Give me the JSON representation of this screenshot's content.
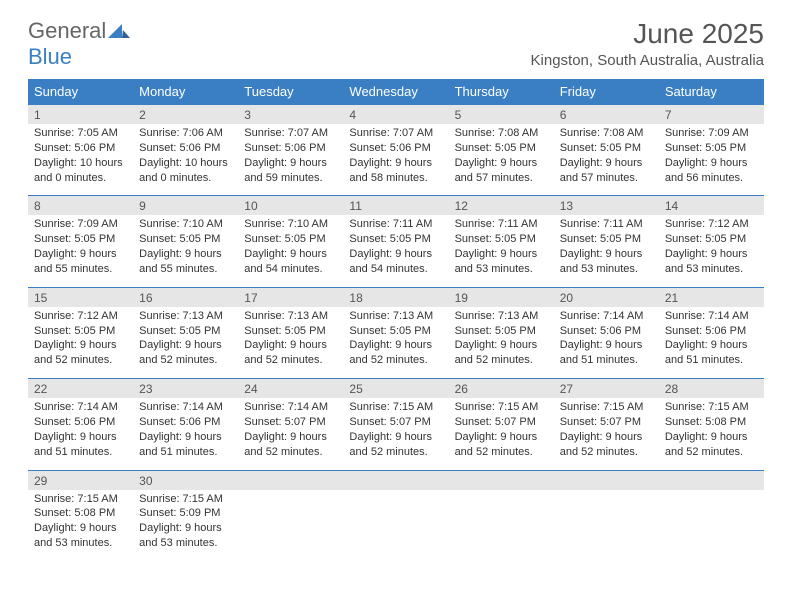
{
  "logo": {
    "part1": "General",
    "part2": "Blue"
  },
  "title": "June 2025",
  "location": "Kingston, South Australia, Australia",
  "colors": {
    "header_bg": "#3a7fc4",
    "header_text": "#ffffff",
    "daynum_bg": "#e6e6e6",
    "border": "#3a7fc4",
    "text": "#333333",
    "title_text": "#555555"
  },
  "day_names": [
    "Sunday",
    "Monday",
    "Tuesday",
    "Wednesday",
    "Thursday",
    "Friday",
    "Saturday"
  ],
  "days": [
    {
      "n": "1",
      "sunrise": "Sunrise: 7:05 AM",
      "sunset": "Sunset: 5:06 PM",
      "daylight": "Daylight: 10 hours and 0 minutes."
    },
    {
      "n": "2",
      "sunrise": "Sunrise: 7:06 AM",
      "sunset": "Sunset: 5:06 PM",
      "daylight": "Daylight: 10 hours and 0 minutes."
    },
    {
      "n": "3",
      "sunrise": "Sunrise: 7:07 AM",
      "sunset": "Sunset: 5:06 PM",
      "daylight": "Daylight: 9 hours and 59 minutes."
    },
    {
      "n": "4",
      "sunrise": "Sunrise: 7:07 AM",
      "sunset": "Sunset: 5:06 PM",
      "daylight": "Daylight: 9 hours and 58 minutes."
    },
    {
      "n": "5",
      "sunrise": "Sunrise: 7:08 AM",
      "sunset": "Sunset: 5:05 PM",
      "daylight": "Daylight: 9 hours and 57 minutes."
    },
    {
      "n": "6",
      "sunrise": "Sunrise: 7:08 AM",
      "sunset": "Sunset: 5:05 PM",
      "daylight": "Daylight: 9 hours and 57 minutes."
    },
    {
      "n": "7",
      "sunrise": "Sunrise: 7:09 AM",
      "sunset": "Sunset: 5:05 PM",
      "daylight": "Daylight: 9 hours and 56 minutes."
    },
    {
      "n": "8",
      "sunrise": "Sunrise: 7:09 AM",
      "sunset": "Sunset: 5:05 PM",
      "daylight": "Daylight: 9 hours and 55 minutes."
    },
    {
      "n": "9",
      "sunrise": "Sunrise: 7:10 AM",
      "sunset": "Sunset: 5:05 PM",
      "daylight": "Daylight: 9 hours and 55 minutes."
    },
    {
      "n": "10",
      "sunrise": "Sunrise: 7:10 AM",
      "sunset": "Sunset: 5:05 PM",
      "daylight": "Daylight: 9 hours and 54 minutes."
    },
    {
      "n": "11",
      "sunrise": "Sunrise: 7:11 AM",
      "sunset": "Sunset: 5:05 PM",
      "daylight": "Daylight: 9 hours and 54 minutes."
    },
    {
      "n": "12",
      "sunrise": "Sunrise: 7:11 AM",
      "sunset": "Sunset: 5:05 PM",
      "daylight": "Daylight: 9 hours and 53 minutes."
    },
    {
      "n": "13",
      "sunrise": "Sunrise: 7:11 AM",
      "sunset": "Sunset: 5:05 PM",
      "daylight": "Daylight: 9 hours and 53 minutes."
    },
    {
      "n": "14",
      "sunrise": "Sunrise: 7:12 AM",
      "sunset": "Sunset: 5:05 PM",
      "daylight": "Daylight: 9 hours and 53 minutes."
    },
    {
      "n": "15",
      "sunrise": "Sunrise: 7:12 AM",
      "sunset": "Sunset: 5:05 PM",
      "daylight": "Daylight: 9 hours and 52 minutes."
    },
    {
      "n": "16",
      "sunrise": "Sunrise: 7:13 AM",
      "sunset": "Sunset: 5:05 PM",
      "daylight": "Daylight: 9 hours and 52 minutes."
    },
    {
      "n": "17",
      "sunrise": "Sunrise: 7:13 AM",
      "sunset": "Sunset: 5:05 PM",
      "daylight": "Daylight: 9 hours and 52 minutes."
    },
    {
      "n": "18",
      "sunrise": "Sunrise: 7:13 AM",
      "sunset": "Sunset: 5:05 PM",
      "daylight": "Daylight: 9 hours and 52 minutes."
    },
    {
      "n": "19",
      "sunrise": "Sunrise: 7:13 AM",
      "sunset": "Sunset: 5:05 PM",
      "daylight": "Daylight: 9 hours and 52 minutes."
    },
    {
      "n": "20",
      "sunrise": "Sunrise: 7:14 AM",
      "sunset": "Sunset: 5:06 PM",
      "daylight": "Daylight: 9 hours and 51 minutes."
    },
    {
      "n": "21",
      "sunrise": "Sunrise: 7:14 AM",
      "sunset": "Sunset: 5:06 PM",
      "daylight": "Daylight: 9 hours and 51 minutes."
    },
    {
      "n": "22",
      "sunrise": "Sunrise: 7:14 AM",
      "sunset": "Sunset: 5:06 PM",
      "daylight": "Daylight: 9 hours and 51 minutes."
    },
    {
      "n": "23",
      "sunrise": "Sunrise: 7:14 AM",
      "sunset": "Sunset: 5:06 PM",
      "daylight": "Daylight: 9 hours and 51 minutes."
    },
    {
      "n": "24",
      "sunrise": "Sunrise: 7:14 AM",
      "sunset": "Sunset: 5:07 PM",
      "daylight": "Daylight: 9 hours and 52 minutes."
    },
    {
      "n": "25",
      "sunrise": "Sunrise: 7:15 AM",
      "sunset": "Sunset: 5:07 PM",
      "daylight": "Daylight: 9 hours and 52 minutes."
    },
    {
      "n": "26",
      "sunrise": "Sunrise: 7:15 AM",
      "sunset": "Sunset: 5:07 PM",
      "daylight": "Daylight: 9 hours and 52 minutes."
    },
    {
      "n": "27",
      "sunrise": "Sunrise: 7:15 AM",
      "sunset": "Sunset: 5:07 PM",
      "daylight": "Daylight: 9 hours and 52 minutes."
    },
    {
      "n": "28",
      "sunrise": "Sunrise: 7:15 AM",
      "sunset": "Sunset: 5:08 PM",
      "daylight": "Daylight: 9 hours and 52 minutes."
    },
    {
      "n": "29",
      "sunrise": "Sunrise: 7:15 AM",
      "sunset": "Sunset: 5:08 PM",
      "daylight": "Daylight: 9 hours and 53 minutes."
    },
    {
      "n": "30",
      "sunrise": "Sunrise: 7:15 AM",
      "sunset": "Sunset: 5:09 PM",
      "daylight": "Daylight: 9 hours and 53 minutes."
    }
  ]
}
